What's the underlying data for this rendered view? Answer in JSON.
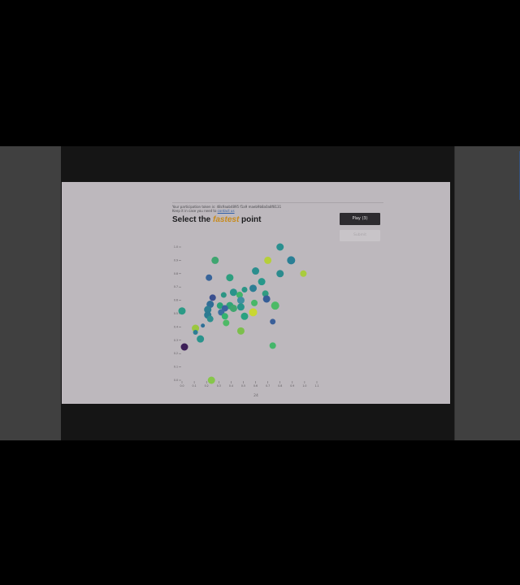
{
  "participant": {
    "line1": "Your participation token is: 48c9aab4895 f1a9 maeb9b8a0a8f8131",
    "line2_prefix": "Keep it in case you need to ",
    "line2_link": "contact us"
  },
  "task": {
    "prefix": "Select the ",
    "keyword": "fastest",
    "suffix": " point"
  },
  "buttons": {
    "play_label": "Play (3)",
    "submit_label": "Submit"
  },
  "page_number": "24",
  "chart_data": {
    "type": "scatter",
    "title": "",
    "xlabel": "",
    "ylabel": "",
    "xlim": [
      0.0,
      1.1
    ],
    "ylim": [
      0.0,
      1.0
    ],
    "x_ticks": [
      "0.0",
      "0.1",
      "0.2",
      "0.3",
      "0.4",
      "0.5",
      "0.6",
      "0.7",
      "0.8",
      "0.9",
      "1.0",
      "1.1"
    ],
    "y_ticks": [
      "0.0",
      "0.1",
      "0.2",
      "0.3",
      "0.4",
      "0.5",
      "0.6",
      "0.7",
      "0.8",
      "0.9",
      "1.0"
    ],
    "points": [
      {
        "x": 0.8,
        "y": 1.0,
        "size": 4.5,
        "color": "#2a8f8f"
      },
      {
        "x": 0.7,
        "y": 0.9,
        "size": 4.5,
        "color": "#b6cf3a"
      },
      {
        "x": 0.89,
        "y": 0.9,
        "size": 5,
        "color": "#2a7f95"
      },
      {
        "x": 0.27,
        "y": 0.9,
        "size": 4.5,
        "color": "#3fa570"
      },
      {
        "x": 0.6,
        "y": 0.82,
        "size": 4.5,
        "color": "#2b8e8e"
      },
      {
        "x": 0.8,
        "y": 0.8,
        "size": 4.5,
        "color": "#2c8b8e"
      },
      {
        "x": 0.99,
        "y": 0.8,
        "size": 4,
        "color": "#a9cc3e"
      },
      {
        "x": 0.22,
        "y": 0.77,
        "size": 4,
        "color": "#38649a"
      },
      {
        "x": 0.39,
        "y": 0.77,
        "size": 4.5,
        "color": "#2e9e7e"
      },
      {
        "x": 0.65,
        "y": 0.74,
        "size": 4.5,
        "color": "#26978a"
      },
      {
        "x": 0.58,
        "y": 0.69,
        "size": 4.5,
        "color": "#2c7e94"
      },
      {
        "x": 0.51,
        "y": 0.68,
        "size": 3.5,
        "color": "#2a9585"
      },
      {
        "x": 0.42,
        "y": 0.66,
        "size": 4.5,
        "color": "#2a938a"
      },
      {
        "x": 0.47,
        "y": 0.64,
        "size": 4,
        "color": "#3fb46a"
      },
      {
        "x": 0.34,
        "y": 0.64,
        "size": 3.5,
        "color": "#2c9584"
      },
      {
        "x": 0.25,
        "y": 0.62,
        "size": 4,
        "color": "#3a4f8f"
      },
      {
        "x": 0.68,
        "y": 0.65,
        "size": 4,
        "color": "#2f9c81"
      },
      {
        "x": 0.48,
        "y": 0.6,
        "size": 4.5,
        "color": "#3f8fa0"
      },
      {
        "x": 0.69,
        "y": 0.61,
        "size": 4.5,
        "color": "#355d97"
      },
      {
        "x": 0.59,
        "y": 0.58,
        "size": 4,
        "color": "#48b768"
      },
      {
        "x": 0.23,
        "y": 0.57,
        "size": 4.5,
        "color": "#2f6d96"
      },
      {
        "x": 0.31,
        "y": 0.56,
        "size": 4,
        "color": "#2aa379"
      },
      {
        "x": 0.39,
        "y": 0.56,
        "size": 4.5,
        "color": "#30a578"
      },
      {
        "x": 0.48,
        "y": 0.55,
        "size": 4.5,
        "color": "#29948a"
      },
      {
        "x": 0.76,
        "y": 0.56,
        "size": 5,
        "color": "#4dba66"
      },
      {
        "x": 0.35,
        "y": 0.54,
        "size": 4,
        "color": "#3c62a0"
      },
      {
        "x": 0.42,
        "y": 0.54,
        "size": 4.5,
        "color": "#41a66f"
      },
      {
        "x": 0.21,
        "y": 0.53,
        "size": 4.5,
        "color": "#2d7d92"
      },
      {
        "x": 0.0,
        "y": 0.52,
        "size": 4.5,
        "color": "#2b9a86"
      },
      {
        "x": 0.58,
        "y": 0.51,
        "size": 5,
        "color": "#c9d732"
      },
      {
        "x": 0.32,
        "y": 0.51,
        "size": 4,
        "color": "#3b6fa0"
      },
      {
        "x": 0.51,
        "y": 0.48,
        "size": 4.5,
        "color": "#29a280"
      },
      {
        "x": 0.21,
        "y": 0.49,
        "size": 4.5,
        "color": "#2b7a92"
      },
      {
        "x": 0.35,
        "y": 0.48,
        "size": 4,
        "color": "#34b36f"
      },
      {
        "x": 0.23,
        "y": 0.46,
        "size": 4,
        "color": "#2d8f8f"
      },
      {
        "x": 0.36,
        "y": 0.43,
        "size": 4,
        "color": "#4eb966"
      },
      {
        "x": 0.74,
        "y": 0.44,
        "size": 3.5,
        "color": "#3a5f99"
      },
      {
        "x": 0.17,
        "y": 0.41,
        "size": 2.5,
        "color": "#2d6f97"
      },
      {
        "x": 0.11,
        "y": 0.39,
        "size": 4.5,
        "color": "#9bc73e"
      },
      {
        "x": 0.11,
        "y": 0.36,
        "size": 3,
        "color": "#2d7e93"
      },
      {
        "x": 0.48,
        "y": 0.37,
        "size": 4.5,
        "color": "#7cbf4c"
      },
      {
        "x": 0.15,
        "y": 0.31,
        "size": 4.5,
        "color": "#2a938c"
      },
      {
        "x": 0.74,
        "y": 0.26,
        "size": 4,
        "color": "#45b66a"
      },
      {
        "x": 0.02,
        "y": 0.25,
        "size": 4.5,
        "color": "#3d1f58"
      },
      {
        "x": 0.24,
        "y": 0.0,
        "size": 4.5,
        "color": "#86c64a"
      }
    ]
  }
}
